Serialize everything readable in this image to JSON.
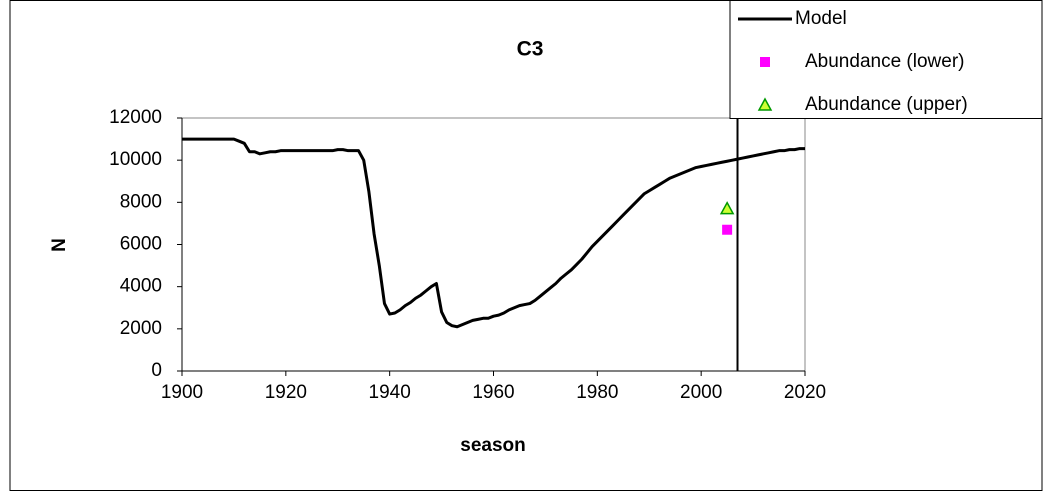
{
  "chart_data": {
    "type": "line",
    "title": "C3",
    "xlabel": "season",
    "ylabel": "N",
    "xlim": [
      1900,
      2020
    ],
    "xticks": [
      1900,
      1920,
      1940,
      1960,
      1980,
      2000,
      2020
    ],
    "ylim": [
      0,
      12000
    ],
    "yticks": [
      0,
      2000,
      4000,
      6000,
      8000,
      10000,
      12000
    ],
    "vlines": [
      2007
    ],
    "vline_color": "#000000",
    "x": [
      1900,
      1901,
      1902,
      1903,
      1904,
      1905,
      1906,
      1907,
      1908,
      1909,
      1910,
      1911,
      1912,
      1913,
      1914,
      1915,
      1916,
      1917,
      1918,
      1919,
      1920,
      1921,
      1922,
      1923,
      1924,
      1925,
      1926,
      1927,
      1928,
      1929,
      1930,
      1931,
      1932,
      1933,
      1934,
      1935,
      1936,
      1937,
      1938,
      1939,
      1940,
      1941,
      1942,
      1943,
      1944,
      1945,
      1946,
      1947,
      1948,
      1949,
      1950,
      1951,
      1952,
      1953,
      1954,
      1955,
      1956,
      1957,
      1958,
      1959,
      1960,
      1961,
      1962,
      1963,
      1964,
      1965,
      1966,
      1967,
      1968,
      1969,
      1970,
      1971,
      1972,
      1973,
      1974,
      1975,
      1976,
      1977,
      1978,
      1979,
      1980,
      1981,
      1982,
      1983,
      1984,
      1985,
      1986,
      1987,
      1988,
      1989,
      1990,
      1991,
      1992,
      1993,
      1994,
      1995,
      1996,
      1997,
      1998,
      1999,
      2000,
      2001,
      2002,
      2003,
      2004,
      2005,
      2006,
      2007,
      2008,
      2009,
      2010,
      2011,
      2012,
      2013,
      2014,
      2015,
      2016,
      2017,
      2018,
      2019,
      2020
    ],
    "series": [
      {
        "name": "Model",
        "color": "#000000",
        "marker": "line",
        "values": [
          11000,
          11000,
          11000,
          11000,
          11000,
          11000,
          11000,
          11000,
          11000,
          11000,
          11000,
          10900,
          10800,
          10400,
          10400,
          10300,
          10350,
          10400,
          10400,
          10450,
          10450,
          10450,
          10450,
          10450,
          10450,
          10450,
          10450,
          10450,
          10450,
          10450,
          10500,
          10500,
          10450,
          10450,
          10450,
          10000,
          8500,
          6500,
          5000,
          3200,
          2700,
          2750,
          2900,
          3100,
          3250,
          3450,
          3600,
          3800,
          4000,
          4150,
          2800,
          2300,
          2150,
          2100,
          2200,
          2300,
          2400,
          2450,
          2500,
          2500,
          2600,
          2650,
          2750,
          2900,
          3000,
          3100,
          3150,
          3200,
          3350,
          3550,
          3750,
          3950,
          4150,
          4400,
          4600,
          4800,
          5050,
          5300,
          5600,
          5900,
          6150,
          6400,
          6650,
          6900,
          7150,
          7400,
          7650,
          7900,
          8150,
          8400,
          8550,
          8700,
          8850,
          9000,
          9150,
          9250,
          9350,
          9450,
          9550,
          9650,
          9700,
          9750,
          9800,
          9850,
          9900,
          9950,
          10000,
          10050,
          10100,
          10150,
          10200,
          10250,
          10300,
          10350,
          10400,
          10450,
          10450,
          10500,
          10500,
          10550,
          10550
        ]
      },
      {
        "name": "Abundance (lower)",
        "color": "#ff00ff",
        "marker": "square",
        "x": [
          2005
        ],
        "values": [
          6700
        ]
      },
      {
        "name": "Abundance (upper)",
        "color": "#ccff33",
        "edge": "#009900",
        "marker": "triangle",
        "x": [
          2005
        ],
        "values": [
          7700
        ]
      }
    ]
  }
}
